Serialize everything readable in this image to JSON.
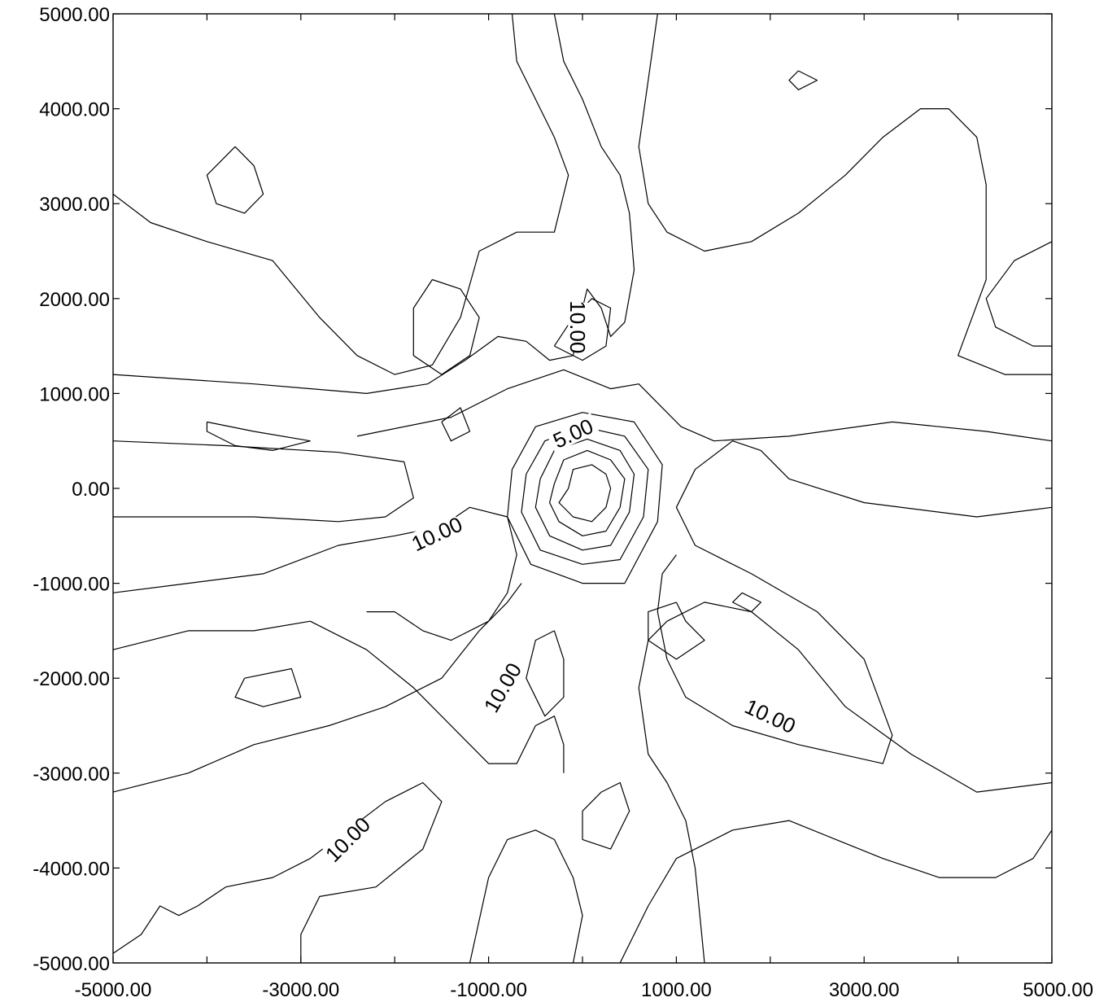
{
  "chart_data": {
    "type": "contour",
    "title": "",
    "xlabel": "",
    "ylabel": "",
    "xlim": [
      -5000,
      5000
    ],
    "ylim": [
      -5000,
      5000
    ],
    "x_tick_labels": [
      "-5000.00",
      "-3000.00",
      "-1000.00",
      "1000.00",
      "3000.00",
      "5000.00"
    ],
    "y_tick_labels": [
      "5000.00",
      "4000.00",
      "3000.00",
      "2000.00",
      "1000.00",
      "0.00",
      "-1000.00",
      "-2000.00",
      "-3000.00",
      "-4000.00",
      "-5000.00"
    ],
    "grid": false,
    "contour_labels": [
      {
        "text": "10.00",
        "x": -50,
        "y": 1700
      },
      {
        "text": "5.00",
        "x": -100,
        "y": 580
      },
      {
        "text": "10.00",
        "x": -1550,
        "y": -480
      },
      {
        "text": "10.00",
        "x": -850,
        "y": -2100
      },
      {
        "text": "10.00",
        "x": 2000,
        "y": -2400
      },
      {
        "text": "10.00",
        "x": -2500,
        "y": -3700
      }
    ],
    "contours": [
      [
        [
          -150,
          0
        ],
        [
          -100,
          200
        ],
        [
          100,
          250
        ],
        [
          250,
          150
        ],
        [
          300,
          0
        ],
        [
          250,
          -200
        ],
        [
          100,
          -350
        ],
        [
          -100,
          -300
        ],
        [
          -250,
          -150
        ],
        [
          -150,
          0
        ]
      ],
      [
        [
          -300,
          50
        ],
        [
          -200,
          300
        ],
        [
          50,
          400
        ],
        [
          300,
          300
        ],
        [
          450,
          100
        ],
        [
          400,
          -200
        ],
        [
          250,
          -450
        ],
        [
          0,
          -500
        ],
        [
          -250,
          -350
        ],
        [
          -350,
          -150
        ],
        [
          -300,
          50
        ]
      ],
      [
        [
          -450,
          100
        ],
        [
          -300,
          400
        ],
        [
          50,
          520
        ],
        [
          400,
          400
        ],
        [
          550,
          150
        ],
        [
          500,
          -250
        ],
        [
          300,
          -600
        ],
        [
          0,
          -650
        ],
        [
          -350,
          -500
        ],
        [
          -500,
          -200
        ],
        [
          -450,
          100
        ]
      ],
      [
        [
          -600,
          150
        ],
        [
          -400,
          500
        ],
        [
          0,
          650
        ],
        [
          450,
          550
        ],
        [
          700,
          200
        ],
        [
          650,
          -300
        ],
        [
          400,
          -750
        ],
        [
          0,
          -800
        ],
        [
          -450,
          -650
        ],
        [
          -650,
          -250
        ],
        [
          -600,
          150
        ]
      ],
      [
        [
          -750,
          200
        ],
        [
          -500,
          650
        ],
        [
          0,
          800
        ],
        [
          550,
          700
        ],
        [
          850,
          250
        ],
        [
          800,
          -350
        ],
        [
          450,
          -1000
        ],
        [
          0,
          -1000
        ],
        [
          -550,
          -800
        ],
        [
          -800,
          -300
        ],
        [
          -750,
          200
        ]
      ],
      [
        [
          -2400,
          550
        ],
        [
          -1400,
          750
        ],
        [
          -800,
          1050
        ],
        [
          -200,
          1250
        ],
        [
          300,
          1050
        ],
        [
          600,
          1100
        ],
        [
          800,
          900
        ],
        [
          1050,
          650
        ],
        [
          1400,
          500
        ],
        [
          2200,
          550
        ],
        [
          3300,
          700
        ],
        [
          4300,
          600
        ],
        [
          5000,
          500
        ]
      ],
      [
        [
          -5000,
          500
        ],
        [
          -3800,
          450
        ],
        [
          -2600,
          380
        ],
        [
          -1900,
          280
        ],
        [
          -1800,
          -100
        ],
        [
          -2100,
          -300
        ],
        [
          -2600,
          -350
        ],
        [
          -3500,
          -300
        ],
        [
          -5000,
          -300
        ]
      ],
      [
        [
          -5000,
          1200
        ],
        [
          -3500,
          1100
        ],
        [
          -2300,
          1000
        ],
        [
          -1650,
          1100
        ],
        [
          -1250,
          1350
        ],
        [
          -900,
          1600
        ],
        [
          -600,
          1550
        ],
        [
          -350,
          1350
        ],
        [
          -100,
          1400
        ],
        [
          -50,
          1700
        ],
        [
          50,
          2100
        ],
        [
          200,
          1900
        ],
        [
          300,
          1600
        ],
        [
          450,
          1750
        ],
        [
          550,
          2300
        ],
        [
          500,
          2900
        ],
        [
          400,
          3300
        ],
        [
          200,
          3600
        ],
        [
          0,
          4100
        ],
        [
          -200,
          4500
        ],
        [
          -300,
          5000
        ]
      ],
      [
        [
          -5000,
          3100
        ],
        [
          -4600,
          2800
        ],
        [
          -4000,
          2600
        ],
        [
          -3300,
          2400
        ],
        [
          -2800,
          1800
        ],
        [
          -2400,
          1400
        ],
        [
          -2000,
          1200
        ],
        [
          -1600,
          1300
        ],
        [
          -1300,
          1800
        ],
        [
          -1100,
          2500
        ],
        [
          -700,
          2700
        ],
        [
          -300,
          2700
        ],
        [
          -150,
          3300
        ],
        [
          -300,
          3700
        ],
        [
          -500,
          4100
        ],
        [
          -700,
          4500
        ],
        [
          -750,
          5000
        ]
      ],
      [
        [
          800,
          5000
        ],
        [
          700,
          4300
        ],
        [
          600,
          3600
        ],
        [
          700,
          3000
        ],
        [
          900,
          2700
        ],
        [
          1300,
          2500
        ],
        [
          1800,
          2600
        ],
        [
          2300,
          2900
        ],
        [
          2800,
          3300
        ],
        [
          3200,
          3700
        ],
        [
          3600,
          4000
        ],
        [
          3900,
          4000
        ],
        [
          4200,
          3700
        ],
        [
          4300,
          3200
        ],
        [
          4300,
          2200
        ],
        [
          4000,
          1400
        ],
        [
          4500,
          1200
        ],
        [
          5000,
          1200
        ]
      ],
      [
        [
          5000,
          -200
        ],
        [
          4200,
          -300
        ],
        [
          3000,
          -150
        ],
        [
          2200,
          100
        ],
        [
          1900,
          400
        ],
        [
          1600,
          500
        ],
        [
          1200,
          200
        ],
        [
          1000,
          -200
        ],
        [
          1200,
          -600
        ],
        [
          1800,
          -900
        ],
        [
          2500,
          -1300
        ],
        [
          3000,
          -1800
        ],
        [
          3300,
          -2600
        ],
        [
          3200,
          -2900
        ],
        [
          2300,
          -2700
        ],
        [
          1600,
          -2500
        ],
        [
          1100,
          -2200
        ],
        [
          900,
          -1800
        ],
        [
          800,
          -1300
        ],
        [
          850,
          -900
        ],
        [
          1000,
          -700
        ]
      ],
      [
        [
          -5000,
          -1100
        ],
        [
          -4200,
          -1000
        ],
        [
          -3400,
          -900
        ],
        [
          -2600,
          -600
        ],
        [
          -2000,
          -500
        ],
        [
          -1500,
          -400
        ],
        [
          -1200,
          -200
        ],
        [
          -800,
          -300
        ],
        [
          -700,
          -700
        ],
        [
          -800,
          -1100
        ],
        [
          -1000,
          -1400
        ],
        [
          -1400,
          -1600
        ],
        [
          -1700,
          -1500
        ],
        [
          -2000,
          -1300
        ],
        [
          -2300,
          -1300
        ]
      ],
      [
        [
          -5000,
          -1700
        ],
        [
          -4200,
          -1500
        ],
        [
          -3500,
          -1500
        ],
        [
          -2900,
          -1400
        ],
        [
          -2300,
          -1700
        ],
        [
          -1800,
          -2100
        ],
        [
          -1300,
          -2600
        ],
        [
          -1000,
          -2900
        ],
        [
          -700,
          -2900
        ],
        [
          -500,
          -2500
        ],
        [
          -300,
          -2400
        ],
        [
          -200,
          -2700
        ],
        [
          -200,
          -3000
        ]
      ],
      [
        [
          -5000,
          -3200
        ],
        [
          -4200,
          -3000
        ],
        [
          -3500,
          -2700
        ],
        [
          -2700,
          -2500
        ],
        [
          -2100,
          -2300
        ],
        [
          -1500,
          -2000
        ],
        [
          -1100,
          -1500
        ],
        [
          -800,
          -1200
        ],
        [
          -650,
          -1000
        ]
      ],
      [
        [
          -5000,
          -4900
        ],
        [
          -4700,
          -4700
        ],
        [
          -4500,
          -4400
        ],
        [
          -4300,
          -4500
        ],
        [
          -4100,
          -4400
        ],
        [
          -3800,
          -4200
        ],
        [
          -3300,
          -4100
        ],
        [
          -2900,
          -3900
        ],
        [
          -2500,
          -3600
        ],
        [
          -2100,
          -3300
        ],
        [
          -1700,
          -3100
        ],
        [
          -1500,
          -3300
        ],
        [
          -1700,
          -3800
        ],
        [
          -2200,
          -4200
        ],
        [
          -2800,
          -4300
        ],
        [
          -3000,
          -4700
        ],
        [
          -3000,
          -5000
        ]
      ],
      [
        [
          -1200,
          -5000
        ],
        [
          -1000,
          -4100
        ],
        [
          -800,
          -3700
        ],
        [
          -500,
          -3600
        ],
        [
          -300,
          -3700
        ],
        [
          -100,
          -4100
        ],
        [
          0,
          -4500
        ],
        [
          -100,
          -5000
        ]
      ],
      [
        [
          1300,
          -5000
        ],
        [
          1200,
          -4000
        ],
        [
          1100,
          -3500
        ],
        [
          900,
          -3100
        ],
        [
          700,
          -2800
        ],
        [
          600,
          -2100
        ],
        [
          700,
          -1600
        ],
        [
          900,
          -1400
        ],
        [
          1300,
          -1200
        ],
        [
          1800,
          -1300
        ],
        [
          2300,
          -1700
        ],
        [
          2800,
          -2300
        ],
        [
          3500,
          -2800
        ],
        [
          4200,
          -3200
        ],
        [
          5000,
          -3100
        ]
      ],
      [
        [
          400,
          -5000
        ],
        [
          700,
          -4400
        ],
        [
          1000,
          -3900
        ],
        [
          1600,
          -3600
        ],
        [
          2200,
          -3500
        ],
        [
          2700,
          -3700
        ],
        [
          3200,
          -3900
        ],
        [
          3800,
          -4100
        ],
        [
          4400,
          -4100
        ],
        [
          4800,
          -3900
        ],
        [
          5000,
          -3600
        ]
      ],
      [
        [
          5000,
          2600
        ],
        [
          4600,
          2400
        ],
        [
          4300,
          2000
        ],
        [
          4400,
          1700
        ],
        [
          4800,
          1500
        ],
        [
          5000,
          1500
        ]
      ],
      [
        [
          -3700,
          3600
        ],
        [
          -3500,
          3400
        ],
        [
          -3400,
          3100
        ],
        [
          -3600,
          2900
        ],
        [
          -3900,
          3000
        ],
        [
          -4000,
          3300
        ],
        [
          -3700,
          3600
        ]
      ],
      [
        [
          -1600,
          2200
        ],
        [
          -1300,
          2100
        ],
        [
          -1100,
          1800
        ],
        [
          -1200,
          1400
        ],
        [
          -1500,
          1200
        ],
        [
          -1800,
          1400
        ],
        [
          -1800,
          1900
        ],
        [
          -1600,
          2200
        ]
      ],
      [
        [
          -300,
          1500
        ],
        [
          -100,
          1800
        ],
        [
          100,
          2000
        ],
        [
          300,
          1900
        ],
        [
          250,
          1500
        ],
        [
          0,
          1350
        ],
        [
          -300,
          1500
        ]
      ],
      [
        [
          -1500,
          700
        ],
        [
          -1300,
          850
        ],
        [
          -1200,
          600
        ],
        [
          -1400,
          500
        ],
        [
          -1500,
          700
        ]
      ],
      [
        [
          2300,
          4400
        ],
        [
          2500,
          4300
        ],
        [
          2300,
          4200
        ],
        [
          2200,
          4300
        ],
        [
          2300,
          4400
        ]
      ],
      [
        [
          -4000,
          700
        ],
        [
          -3500,
          600
        ],
        [
          -2900,
          500
        ],
        [
          -3300,
          400
        ],
        [
          -3700,
          450
        ],
        [
          -4000,
          600
        ],
        [
          -4000,
          700
        ]
      ],
      [
        [
          -3600,
          -2000
        ],
        [
          -3100,
          -1900
        ],
        [
          -3000,
          -2200
        ],
        [
          -3400,
          -2300
        ],
        [
          -3700,
          -2200
        ],
        [
          -3600,
          -2000
        ]
      ],
      [
        [
          -300,
          -1500
        ],
        [
          -200,
          -1800
        ],
        [
          -200,
          -2200
        ],
        [
          -400,
          -2400
        ],
        [
          -600,
          -2000
        ],
        [
          -500,
          -1600
        ],
        [
          -300,
          -1500
        ]
      ],
      [
        [
          0,
          -3400
        ],
        [
          200,
          -3200
        ],
        [
          400,
          -3100
        ],
        [
          500,
          -3400
        ],
        [
          300,
          -3800
        ],
        [
          0,
          -3700
        ],
        [
          0,
          -3400
        ]
      ],
      [
        [
          1000,
          -1200
        ],
        [
          1100,
          -1400
        ],
        [
          1300,
          -1600
        ],
        [
          1000,
          -1800
        ],
        [
          700,
          -1600
        ],
        [
          700,
          -1300
        ],
        [
          1000,
          -1200
        ]
      ],
      [
        [
          1700,
          -1100
        ],
        [
          1900,
          -1200
        ],
        [
          1800,
          -1300
        ],
        [
          1600,
          -1200
        ],
        [
          1700,
          -1100
        ]
      ]
    ]
  }
}
